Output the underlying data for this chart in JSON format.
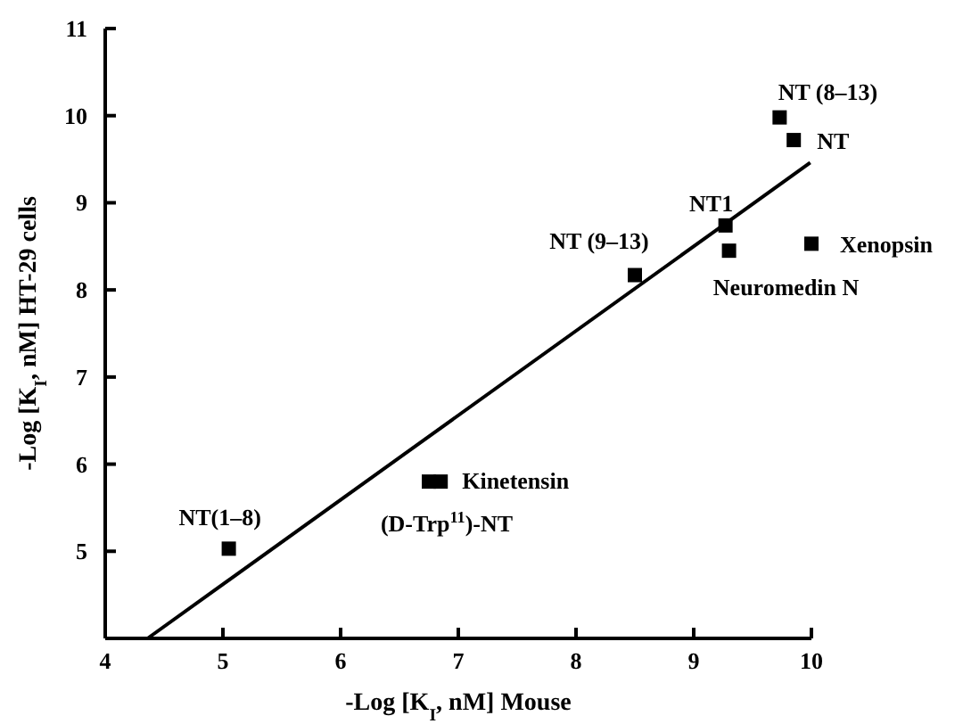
{
  "chart_data": {
    "type": "scatter",
    "xlabel": "-Log [K$_{I}$, nM] Mouse",
    "ylabel": "-Log [K$_{I}$, nM] HT-29 cells",
    "xlim": [
      4,
      10
    ],
    "ylim": [
      4,
      11
    ],
    "xticks": [
      4,
      5,
      6,
      7,
      8,
      9,
      10
    ],
    "yticks": [
      5,
      6,
      7,
      8,
      9,
      10,
      11
    ],
    "grid": false,
    "marker": "square",
    "series": [
      {
        "color": "#000000",
        "x": [
          5.05,
          6.75,
          6.85,
          8.5,
          9.27,
          9.3,
          10.0,
          9.73,
          9.85
        ],
        "values": [
          5.03,
          5.8,
          5.8,
          8.17,
          8.74,
          8.45,
          8.53,
          9.98,
          9.72
        ]
      },
      {
        "type": "line",
        "color": "#000000",
        "line_style": "solid",
        "marker": "none",
        "x": [
          4.36,
          9.99
        ],
        "values": [
          4,
          9.46
        ]
      }
    ],
    "annotations": [
      {
        "text": "NT(1–8)",
        "x": 5.05,
        "y": 5.03
      },
      {
        "text": "(D-Trp$^{11}$)-NT",
        "x": 6.75,
        "y": 5.8
      },
      {
        "text": "Kinetensin",
        "x": 6.85,
        "y": 5.8
      },
      {
        "text": "NT (9–13)",
        "x": 8.5,
        "y": 8.17
      },
      {
        "text": "NT1",
        "x": 9.27,
        "y": 8.74
      },
      {
        "text": "Neuromedin N",
        "x": 9.3,
        "y": 8.45
      },
      {
        "text": "Xenopsin",
        "x": 10.0,
        "y": 8.53
      },
      {
        "text": "NT (8–13)",
        "x": 9.73,
        "y": 9.98
      },
      {
        "text": "NT",
        "x": 9.85,
        "y": 9.72
      }
    ]
  }
}
